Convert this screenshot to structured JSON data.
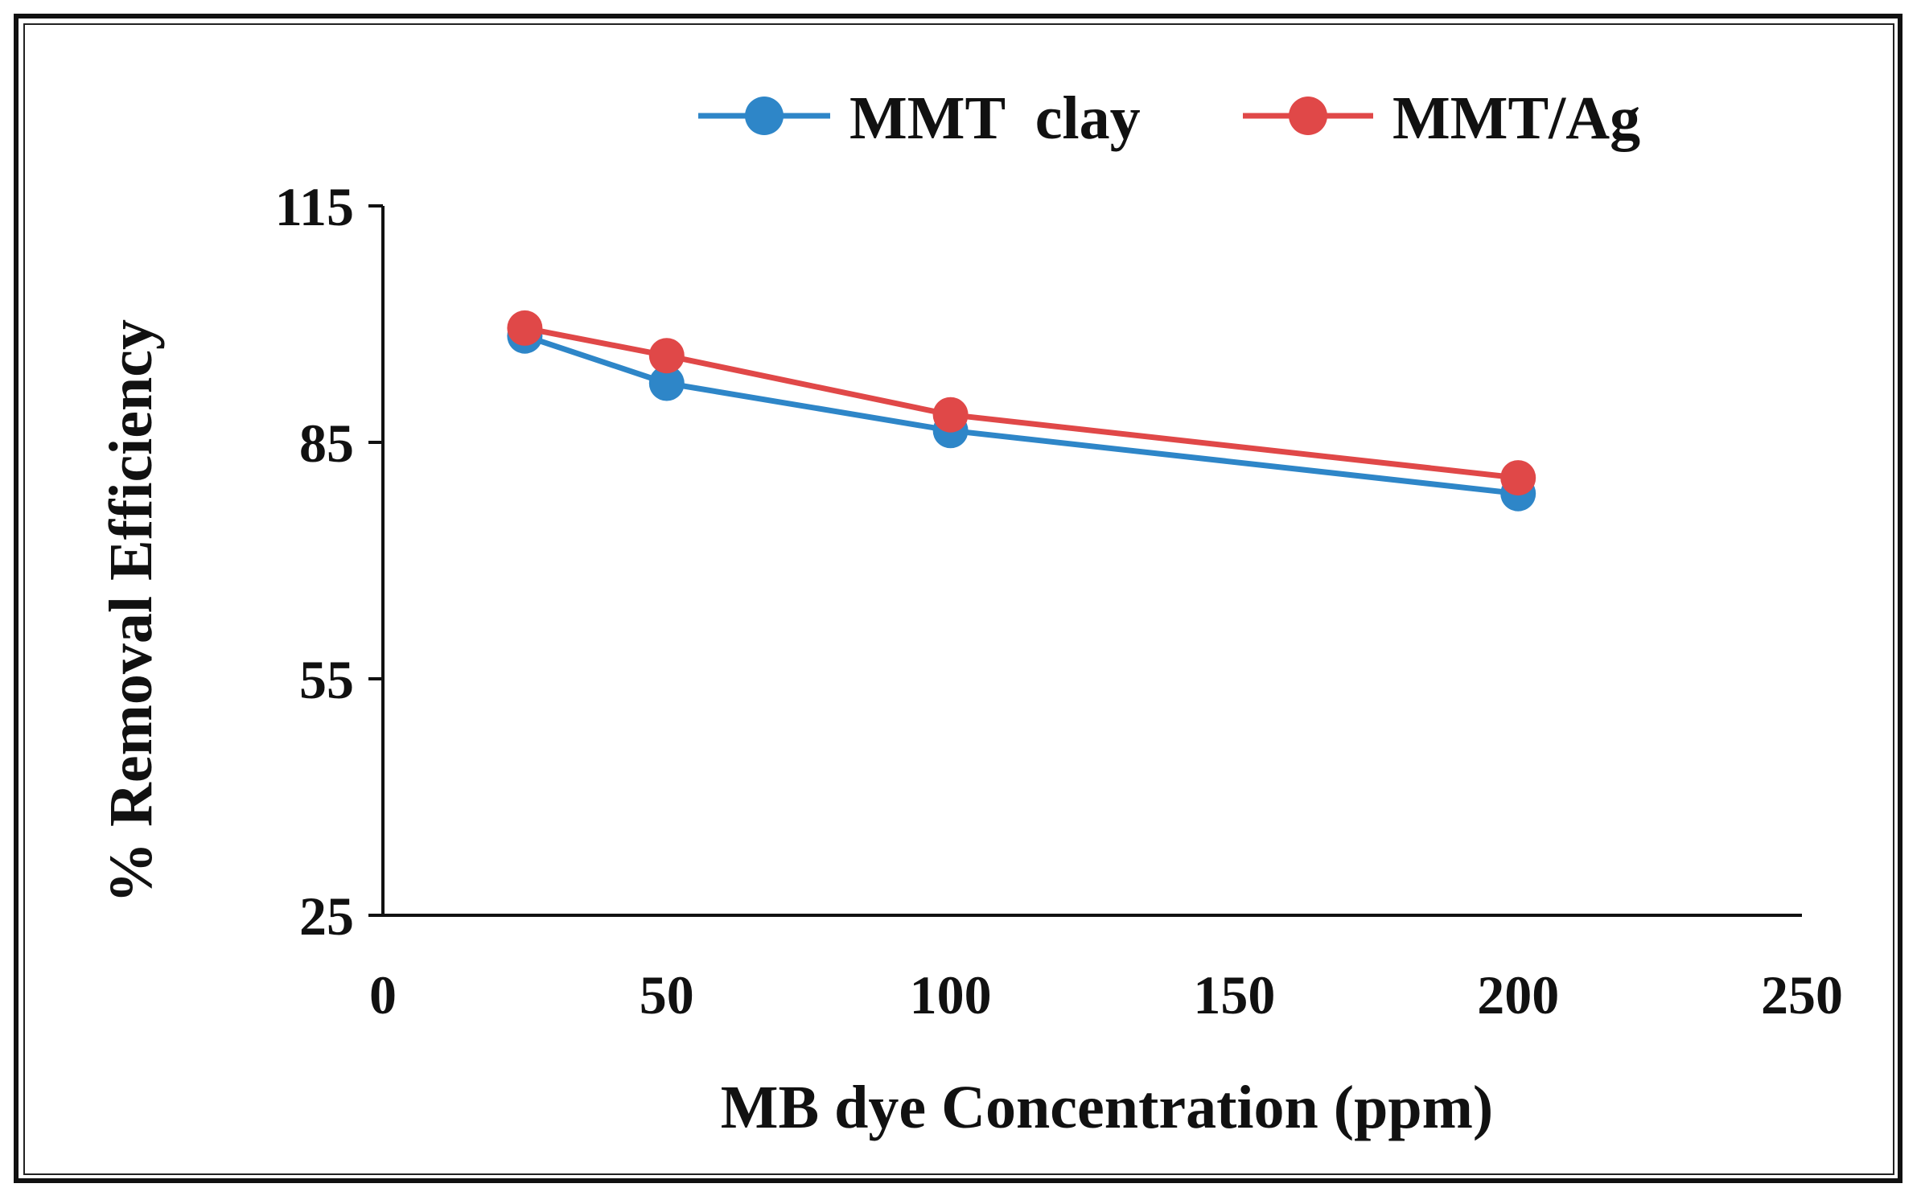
{
  "chart_data": {
    "type": "line",
    "title": "",
    "xlabel": "MB dye Concentration (ppm)",
    "ylabel": "% Removal Efficiency",
    "xlim": [
      0,
      250
    ],
    "ylim": [
      25,
      115
    ],
    "xticks": [
      0,
      50,
      100,
      150,
      200,
      250
    ],
    "yticks": [
      25,
      55,
      85,
      115
    ],
    "grid": false,
    "legend_position": "top-center",
    "series": [
      {
        "name": "MMT  clay",
        "color": "#2e86c8",
        "x": [
          25,
          50,
          100,
          200
        ],
        "y": [
          98.5,
          92.5,
          86.5,
          78.5
        ]
      },
      {
        "name": "MMT/Ag",
        "color": "#e04848",
        "x": [
          25,
          50,
          100,
          200
        ],
        "y": [
          99.5,
          96,
          88.5,
          80.5
        ]
      }
    ]
  }
}
